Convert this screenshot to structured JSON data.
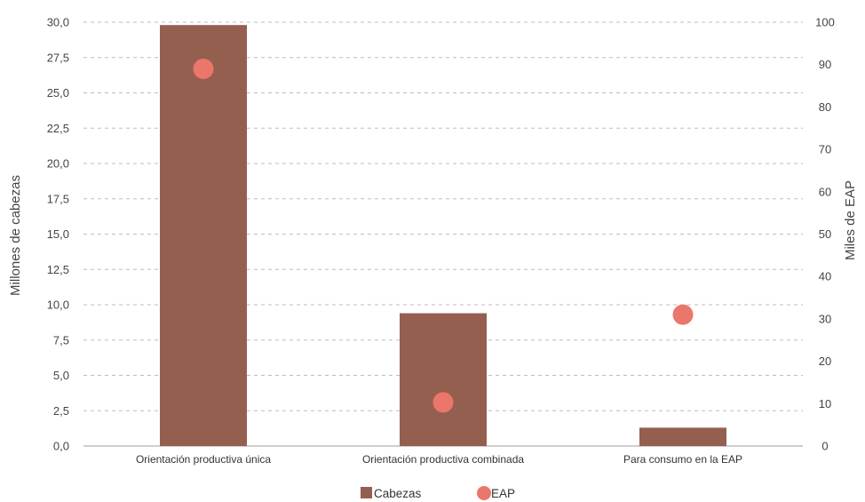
{
  "chart_data": {
    "type": "bar",
    "categories": [
      "Orientación productiva única",
      "Orientación productiva combinada",
      "Para consumo en la EAP"
    ],
    "series": [
      {
        "name": "Cabezas",
        "type": "bar",
        "axis": "left",
        "values": [
          29.8,
          9.4,
          1.3
        ]
      },
      {
        "name": "EAP",
        "type": "scatter",
        "axis": "right",
        "values": [
          89,
          10.3,
          31
        ]
      }
    ],
    "ylabel": "Millones de cabezas",
    "y2label": "Miles de EAP",
    "ylim": [
      0,
      30
    ],
    "y2lim": [
      0,
      100
    ],
    "yticks": [
      "0,0",
      "2,5",
      "5,0",
      "7,5",
      "10,0",
      "12,5",
      "15,0",
      "17,5",
      "20,0",
      "22,5",
      "25,0",
      "27,5",
      "30,0"
    ],
    "y2ticks": [
      "0",
      "10",
      "20",
      "30",
      "40",
      "50",
      "60",
      "70",
      "80",
      "90",
      "100"
    ],
    "grid": true,
    "legend_position": "bottom",
    "colors": {
      "bar": "#955f4f",
      "dot": "#eb766b",
      "grid": "#bdbdbd"
    }
  }
}
